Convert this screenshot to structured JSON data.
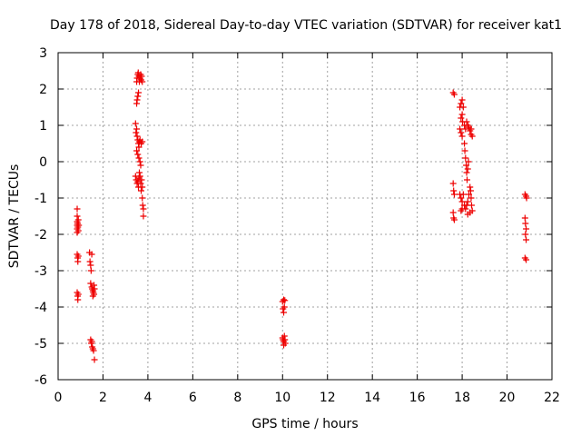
{
  "chart_data": {
    "type": "scatter",
    "title": "Day 178 of 2018, Sidereal Day-to-day VTEC variation (SDTVAR) for receiver kat1",
    "xlabel": "GPS time / hours",
    "ylabel": "SDTVAR / TECUs",
    "xlim": [
      0,
      22
    ],
    "ylim": [
      -6,
      3
    ],
    "x_ticks": [
      0,
      2,
      4,
      6,
      8,
      10,
      12,
      14,
      16,
      18,
      20,
      22
    ],
    "y_ticks": [
      -6,
      -5,
      -4,
      -3,
      -2,
      -1,
      0,
      1,
      2,
      3
    ],
    "grid": true,
    "marker": "+",
    "color": "#ee0000",
    "series": [
      {
        "name": "kat1",
        "points": [
          [
            0.85,
            -1.3
          ],
          [
            0.85,
            -1.5
          ],
          [
            0.85,
            -1.65
          ],
          [
            0.85,
            -1.75
          ],
          [
            0.85,
            -1.85
          ],
          [
            0.85,
            -1.95
          ],
          [
            0.87,
            -1.7
          ],
          [
            0.88,
            -1.8
          ],
          [
            0.9,
            -1.6
          ],
          [
            0.9,
            -1.9
          ],
          [
            0.92,
            -1.75
          ],
          [
            0.85,
            -2.55
          ],
          [
            0.87,
            -2.65
          ],
          [
            0.88,
            -2.75
          ],
          [
            0.9,
            -2.6
          ],
          [
            0.85,
            -3.6
          ],
          [
            0.87,
            -3.7
          ],
          [
            0.88,
            -3.8
          ],
          [
            0.9,
            -3.65
          ],
          [
            1.4,
            -2.5
          ],
          [
            1.42,
            -2.75
          ],
          [
            1.45,
            -2.85
          ],
          [
            1.47,
            -3.0
          ],
          [
            1.5,
            -2.55
          ],
          [
            1.45,
            -3.35
          ],
          [
            1.5,
            -3.45
          ],
          [
            1.52,
            -3.5
          ],
          [
            1.55,
            -3.55
          ],
          [
            1.57,
            -3.6
          ],
          [
            1.6,
            -3.65
          ],
          [
            1.55,
            -3.7
          ],
          [
            1.6,
            -3.4
          ],
          [
            1.62,
            -3.5
          ],
          [
            1.45,
            -4.9
          ],
          [
            1.48,
            -5.0
          ],
          [
            1.5,
            -4.95
          ],
          [
            1.52,
            -5.1
          ],
          [
            1.55,
            -5.15
          ],
          [
            1.58,
            -5.2
          ],
          [
            1.62,
            -5.45
          ],
          [
            3.5,
            2.2
          ],
          [
            3.52,
            2.3
          ],
          [
            3.55,
            2.4
          ],
          [
            3.57,
            2.45
          ],
          [
            3.6,
            2.35
          ],
          [
            3.62,
            2.2
          ],
          [
            3.65,
            2.3
          ],
          [
            3.68,
            2.4
          ],
          [
            3.7,
            2.25
          ],
          [
            3.72,
            2.35
          ],
          [
            3.75,
            2.2
          ],
          [
            3.5,
            1.6
          ],
          [
            3.52,
            1.7
          ],
          [
            3.55,
            1.8
          ],
          [
            3.58,
            1.9
          ],
          [
            3.45,
            1.05
          ],
          [
            3.47,
            0.8
          ],
          [
            3.5,
            0.9
          ],
          [
            3.52,
            0.7
          ],
          [
            3.55,
            0.6
          ],
          [
            3.58,
            0.5
          ],
          [
            3.6,
            0.4
          ],
          [
            3.62,
            0.55
          ],
          [
            3.65,
            0.6
          ],
          [
            3.7,
            0.5
          ],
          [
            3.75,
            0.55
          ],
          [
            3.5,
            0.3
          ],
          [
            3.55,
            0.2
          ],
          [
            3.6,
            0.1
          ],
          [
            3.65,
            0.0
          ],
          [
            3.68,
            -0.1
          ],
          [
            3.45,
            -0.4
          ],
          [
            3.48,
            -0.5
          ],
          [
            3.52,
            -0.6
          ],
          [
            3.55,
            -0.55
          ],
          [
            3.58,
            -0.7
          ],
          [
            3.6,
            -0.45
          ],
          [
            3.62,
            -0.3
          ],
          [
            3.65,
            -0.4
          ],
          [
            3.68,
            -0.6
          ],
          [
            3.7,
            -0.8
          ],
          [
            3.72,
            -0.5
          ],
          [
            3.75,
            -0.7
          ],
          [
            3.75,
            -1.0
          ],
          [
            3.77,
            -1.2
          ],
          [
            3.8,
            -1.3
          ],
          [
            3.8,
            -1.5
          ],
          [
            10.0,
            -3.85
          ],
          [
            10.05,
            -3.8
          ],
          [
            10.1,
            -3.82
          ],
          [
            10.02,
            -4.05
          ],
          [
            10.05,
            -4.15
          ],
          [
            10.08,
            -4.0
          ],
          [
            10.0,
            -4.85
          ],
          [
            10.02,
            -4.9
          ],
          [
            10.05,
            -4.95
          ],
          [
            10.08,
            -4.8
          ],
          [
            10.1,
            -4.9
          ],
          [
            10.12,
            -5.0
          ],
          [
            10.05,
            -5.05
          ],
          [
            17.6,
            1.9
          ],
          [
            17.65,
            1.85
          ],
          [
            17.6,
            -0.6
          ],
          [
            17.62,
            -0.8
          ],
          [
            17.65,
            -0.9
          ],
          [
            17.6,
            -1.4
          ],
          [
            17.62,
            -1.55
          ],
          [
            17.65,
            -1.6
          ],
          [
            17.9,
            1.5
          ],
          [
            17.95,
            1.6
          ],
          [
            18.0,
            1.7
          ],
          [
            18.05,
            1.5
          ],
          [
            18.0,
            1.3
          ],
          [
            18.02,
            1.1
          ],
          [
            17.95,
            1.2
          ],
          [
            17.9,
            0.9
          ],
          [
            17.95,
            0.8
          ],
          [
            18.0,
            0.7
          ],
          [
            18.1,
            1.0
          ],
          [
            18.15,
            0.9
          ],
          [
            18.2,
            1.1
          ],
          [
            18.25,
            1.0
          ],
          [
            18.3,
            0.95
          ],
          [
            18.35,
            0.85
          ],
          [
            18.4,
            0.75
          ],
          [
            18.45,
            0.7
          ],
          [
            18.4,
            0.9
          ],
          [
            18.1,
            0.5
          ],
          [
            18.12,
            0.3
          ],
          [
            18.15,
            0.1
          ],
          [
            18.18,
            -0.1
          ],
          [
            18.2,
            -0.3
          ],
          [
            18.22,
            -0.5
          ],
          [
            18.25,
            -0.2
          ],
          [
            18.28,
            0.0
          ],
          [
            17.9,
            -0.9
          ],
          [
            17.95,
            -1.0
          ],
          [
            18.0,
            -1.1
          ],
          [
            18.05,
            -0.9
          ],
          [
            18.1,
            -1.2
          ],
          [
            18.15,
            -1.3
          ],
          [
            18.2,
            -1.2
          ],
          [
            18.25,
            -1.1
          ],
          [
            18.3,
            -0.9
          ],
          [
            18.35,
            -0.7
          ],
          [
            18.38,
            -0.8
          ],
          [
            18.4,
            -1.0
          ],
          [
            18.42,
            -1.2
          ],
          [
            18.45,
            -1.35
          ],
          [
            18.35,
            -1.4
          ],
          [
            18.25,
            -1.45
          ],
          [
            17.95,
            -1.35
          ],
          [
            18.0,
            -1.3
          ],
          [
            20.8,
            -0.9
          ],
          [
            20.85,
            -0.95
          ],
          [
            20.87,
            -1.0
          ],
          [
            20.8,
            -1.55
          ],
          [
            20.82,
            -1.7
          ],
          [
            20.85,
            -1.85
          ],
          [
            20.82,
            -2.0
          ],
          [
            20.85,
            -2.15
          ],
          [
            20.8,
            -2.65
          ],
          [
            20.85,
            -2.7
          ]
        ]
      }
    ]
  }
}
